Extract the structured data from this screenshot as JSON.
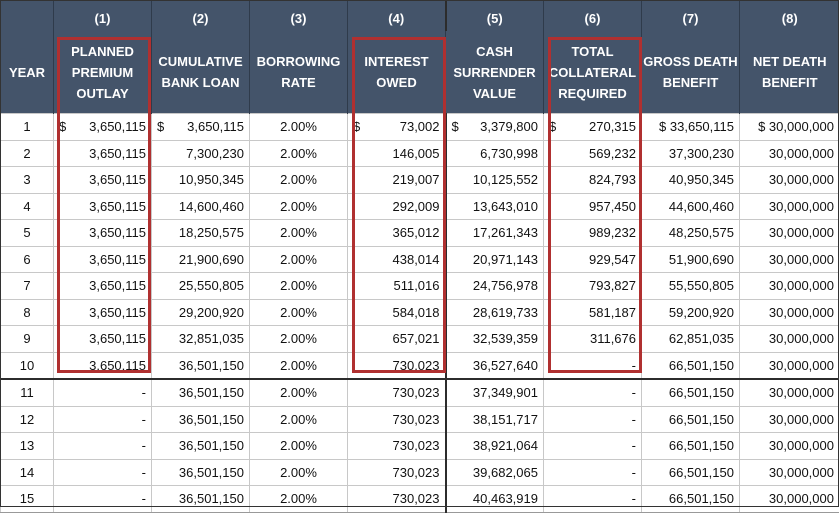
{
  "columns": [
    {
      "num": "",
      "label": "YEAR"
    },
    {
      "num": "(1)",
      "label": "PLANNED PREMIUM OUTLAY"
    },
    {
      "num": "(2)",
      "label": "CUMULATIVE BANK LOAN"
    },
    {
      "num": "(3)",
      "label": "BORROWING RATE"
    },
    {
      "num": "(4)",
      "label": "INTEREST OWED"
    },
    {
      "num": "(5)",
      "label": "CASH SURRENDER VALUE"
    },
    {
      "num": "(6)",
      "label": "TOTAL COLLATERAL REQUIRED"
    },
    {
      "num": "(7)",
      "label": "GROSS DEATH BENEFIT"
    },
    {
      "num": "(8)",
      "label": "NET DEATH BENEFIT"
    }
  ],
  "dollar_sign": "$",
  "rows": [
    [
      "1",
      "3,650,115",
      "3,650,115",
      "2.00%",
      "73,002",
      "3,379,800",
      "270,315",
      "$ 33,650,115",
      "$ 30,000,000"
    ],
    [
      "2",
      "3,650,115",
      "7,300,230",
      "2.00%",
      "146,005",
      "6,730,998",
      "569,232",
      "37,300,230",
      "30,000,000"
    ],
    [
      "3",
      "3,650,115",
      "10,950,345",
      "2.00%",
      "219,007",
      "10,125,552",
      "824,793",
      "40,950,345",
      "30,000,000"
    ],
    [
      "4",
      "3,650,115",
      "14,600,460",
      "2.00%",
      "292,009",
      "13,643,010",
      "957,450",
      "44,600,460",
      "30,000,000"
    ],
    [
      "5",
      "3,650,115",
      "18,250,575",
      "2.00%",
      "365,012",
      "17,261,343",
      "989,232",
      "48,250,575",
      "30,000,000"
    ],
    [
      "6",
      "3,650,115",
      "21,900,690",
      "2.00%",
      "438,014",
      "20,971,143",
      "929,547",
      "51,900,690",
      "30,000,000"
    ],
    [
      "7",
      "3,650,115",
      "25,550,805",
      "2.00%",
      "511,016",
      "24,756,978",
      "793,827",
      "55,550,805",
      "30,000,000"
    ],
    [
      "8",
      "3,650,115",
      "29,200,920",
      "2.00%",
      "584,018",
      "28,619,733",
      "581,187",
      "59,200,920",
      "30,000,000"
    ],
    [
      "9",
      "3,650,115",
      "32,851,035",
      "2.00%",
      "657,021",
      "32,539,359",
      "311,676",
      "62,851,035",
      "30,000,000"
    ],
    [
      "10",
      "3,650,115",
      "36,501,150",
      "2.00%",
      "730,023",
      "36,527,640",
      "-",
      "66,501,150",
      "30,000,000"
    ],
    [
      "11",
      "-",
      "36,501,150",
      "2.00%",
      "730,023",
      "37,349,901",
      "-",
      "66,501,150",
      "30,000,000"
    ],
    [
      "12",
      "-",
      "36,501,150",
      "2.00%",
      "730,023",
      "38,151,717",
      "-",
      "66,501,150",
      "30,000,000"
    ],
    [
      "13",
      "-",
      "36,501,150",
      "2.00%",
      "730,023",
      "38,921,064",
      "-",
      "66,501,150",
      "30,000,000"
    ],
    [
      "14",
      "-",
      "36,501,150",
      "2.00%",
      "730,023",
      "39,682,065",
      "-",
      "66,501,150",
      "30,000,000"
    ],
    [
      "15",
      "-",
      "36,501,150",
      "2.00%",
      "730,023",
      "40,463,919",
      "-",
      "66,501,150",
      "30,000,000"
    ]
  ],
  "dollar_columns_first_row": [
    1,
    2,
    4,
    5,
    6
  ],
  "highlighted_columns": [
    1,
    4,
    6
  ],
  "colors": {
    "header_bg": "#44546a",
    "header_text": "#ffffff",
    "highlight_border": "#b03030"
  }
}
